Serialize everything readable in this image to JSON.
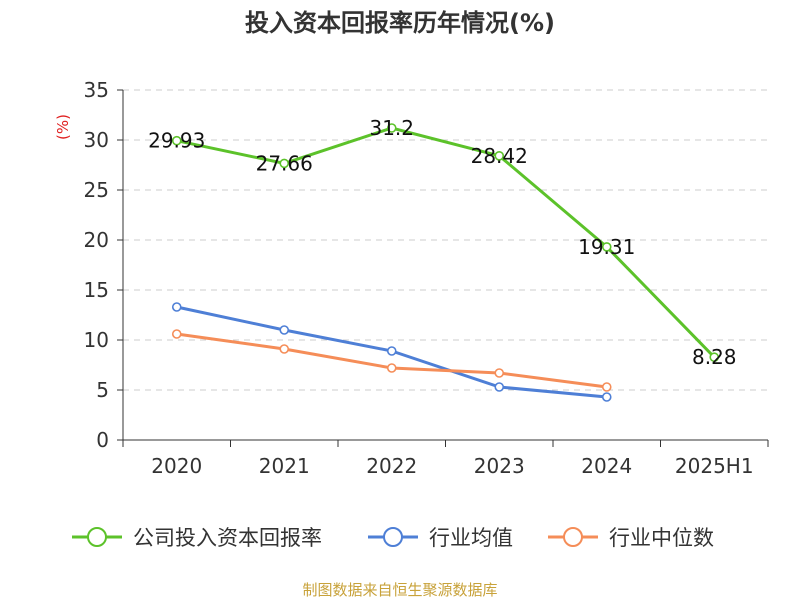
{
  "chart_data": {
    "type": "line",
    "title": "投入资本回报率历年情况(%)",
    "unit_label": "(%)",
    "categories": [
      "2020",
      "2021",
      "2022",
      "2023",
      "2024",
      "2025H1"
    ],
    "ylim": [
      0,
      35
    ],
    "yticks": [
      0,
      5,
      10,
      15,
      20,
      25,
      30,
      35
    ],
    "grid": true,
    "legend_position": "bottom",
    "series": [
      {
        "name": "公司投入资本回报率",
        "color": "#5cc22a",
        "values": [
          29.93,
          27.66,
          31.2,
          28.42,
          19.31,
          8.28
        ],
        "labels": [
          "29.93",
          "27.66",
          "31.2",
          "28.42",
          "19.31",
          "8.28"
        ]
      },
      {
        "name": "行业均值",
        "color": "#4e7fd6",
        "values": [
          13.3,
          11.0,
          8.9,
          5.3,
          4.3,
          null
        ]
      },
      {
        "name": "行业中位数",
        "color": "#f58d58",
        "values": [
          10.6,
          9.1,
          7.2,
          6.7,
          5.3,
          null
        ]
      }
    ],
    "source": "制图数据来自恒生聚源数据库"
  }
}
